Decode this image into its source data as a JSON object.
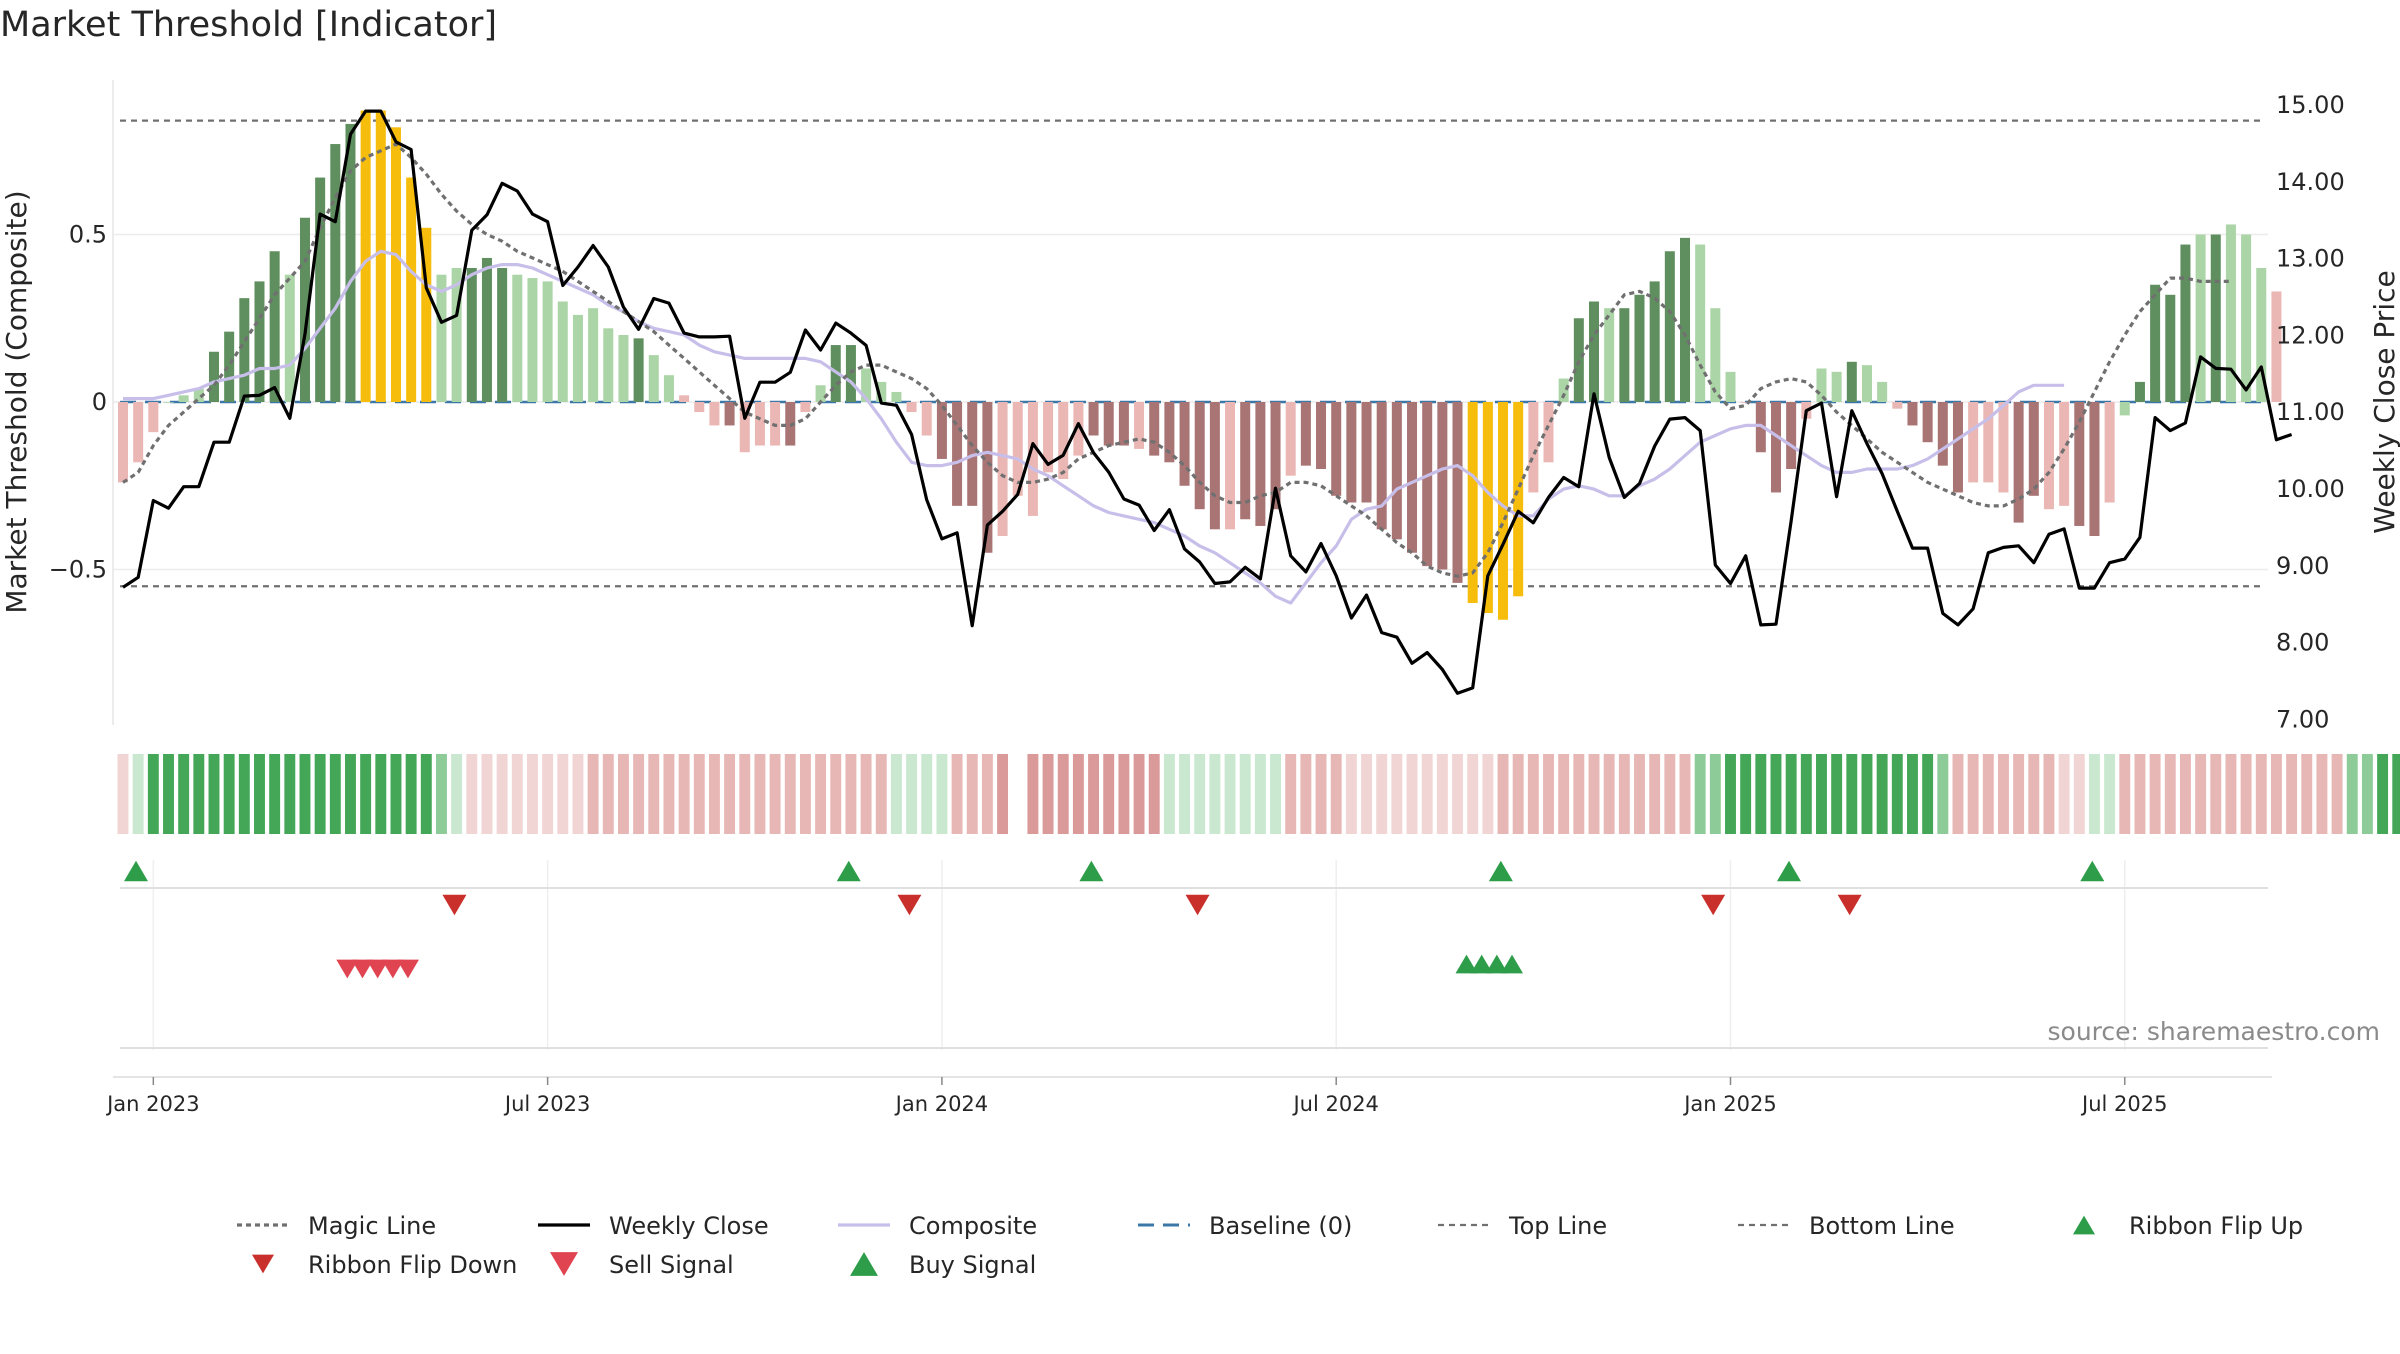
{
  "title": "Market Threshold [Indicator]",
  "source_note": "source: sharemaestro.com",
  "colors": {
    "strong_green": "#5f8f5f",
    "light_green": "#abd5a6",
    "strong_red": "#a87474",
    "light_red": "#eab7b4",
    "extreme": "#f6bd0c",
    "weekly_close": "#000000",
    "magic_line": "#707070",
    "composite": "#c7bfe9",
    "baseline": "#3b78a8",
    "ribbon_green_strong": "#43a757",
    "ribbon_green_mid": "#8dcb99",
    "ribbon_green_light": "#c9e8cf",
    "ribbon_red_strong": "#da9a9a",
    "ribbon_red_mid": "#e7b7b6",
    "ribbon_red_light": "#f1d5d4",
    "flip_up": "#2e9d49",
    "flip_down": "#c9302c",
    "sell": "#e04450",
    "buy": "#2e9d49"
  },
  "chart_data": {
    "type": "bar",
    "title": "Market Threshold [Indicator]",
    "ylabel_left": "Market Threshold (Composite)",
    "ylabel_right": "Weekly Close Price",
    "ylim_left": [
      -0.97,
      0.97
    ],
    "ylim_right": [
      7.0,
      15.2
    ],
    "left_ticks": [
      {
        "v": 0.5,
        "label": "0.5"
      },
      {
        "v": 0,
        "label": "0"
      },
      {
        "v": -0.5,
        "label": "−0.5"
      }
    ],
    "right_ticks": [
      {
        "v": 15,
        "label": "15.00"
      },
      {
        "v": 14,
        "label": "14.00"
      },
      {
        "v": 13,
        "label": "13.00"
      },
      {
        "v": 12,
        "label": "12.00"
      },
      {
        "v": 11,
        "label": "11.00"
      },
      {
        "v": 10,
        "label": "10.00"
      },
      {
        "v": 9,
        "label": "9.00"
      },
      {
        "v": 8,
        "label": "8.00"
      },
      {
        "v": 7,
        "label": "7.00"
      }
    ],
    "x_ticks": [
      {
        "week": 2,
        "label": "Jan 2023"
      },
      {
        "week": 28,
        "label": "Jul 2023"
      },
      {
        "week": 54,
        "label": "Jan 2024"
      },
      {
        "week": 80,
        "label": "Jul 2024"
      },
      {
        "week": 106,
        "label": "Jan 2025"
      },
      {
        "week": 132,
        "label": "Jul 2025"
      }
    ],
    "top_line": 0.84,
    "bottom_line": -0.55,
    "baseline": 0,
    "grid": true,
    "legend_position": "bottom",
    "composite_bars": [
      -0.24,
      -0.18,
      -0.09,
      0.0,
      0.02,
      0.04,
      0.15,
      0.21,
      0.31,
      0.36,
      0.45,
      0.38,
      0.55,
      0.67,
      0.77,
      0.83,
      0.87,
      0.87,
      0.82,
      0.67,
      0.52,
      0.38,
      0.4,
      0.4,
      0.43,
      0.4,
      0.38,
      0.37,
      0.36,
      0.3,
      0.26,
      0.28,
      0.22,
      0.2,
      0.19,
      0.14,
      0.08,
      0.02,
      -0.03,
      -0.07,
      -0.07,
      -0.15,
      -0.13,
      -0.13,
      -0.13,
      -0.03,
      0.05,
      0.17,
      0.17,
      0.1,
      0.06,
      0.03,
      -0.03,
      -0.1,
      -0.17,
      -0.31,
      -0.31,
      -0.45,
      -0.4,
      -0.28,
      -0.34,
      -0.21,
      -0.23,
      -0.16,
      -0.1,
      -0.13,
      -0.13,
      -0.14,
      -0.16,
      -0.18,
      -0.25,
      -0.32,
      -0.38,
      -0.38,
      -0.35,
      -0.37,
      -0.32,
      -0.22,
      -0.19,
      -0.2,
      -0.28,
      -0.3,
      -0.3,
      -0.38,
      -0.41,
      -0.45,
      -0.49,
      -0.5,
      -0.54,
      -0.6,
      -0.63,
      -0.65,
      -0.58,
      -0.27,
      -0.18,
      0.07,
      0.25,
      0.3,
      0.28,
      0.28,
      0.32,
      0.36,
      0.45,
      0.49,
      0.47,
      0.28,
      0.09,
      0.0,
      -0.15,
      -0.27,
      -0.2,
      -0.05,
      0.1,
      0.09,
      0.12,
      0.11,
      0.06,
      -0.02,
      -0.07,
      -0.12,
      -0.19,
      -0.27,
      -0.24,
      -0.24,
      -0.27,
      -0.36,
      -0.28,
      -0.32,
      -0.31,
      -0.37,
      -0.4,
      -0.3,
      -0.04,
      0.06,
      0.35,
      0.32,
      0.47,
      0.5,
      0.5,
      0.53,
      0.5,
      0.4,
      0.33
    ],
    "bar_classes": [
      "lr",
      "lr",
      "lr",
      "lg",
      "lg",
      "lg",
      "sg",
      "sg",
      "sg",
      "sg",
      "sg",
      "lg",
      "sg",
      "sg",
      "sg",
      "sg",
      "ex",
      "ex",
      "ex",
      "ex",
      "ex",
      "lg",
      "lg",
      "sg",
      "sg",
      "sg",
      "lg",
      "lg",
      "lg",
      "lg",
      "lg",
      "lg",
      "lg",
      "lg",
      "sg",
      "lg",
      "lg",
      "lr",
      "lr",
      "lr",
      "sr",
      "lr",
      "lr",
      "lr",
      "sr",
      "lr",
      "lg",
      "sg",
      "sg",
      "lg",
      "lg",
      "lg",
      "lr",
      "lr",
      "sr",
      "sr",
      "sr",
      "sr",
      "lr",
      "lr",
      "lr",
      "lr",
      "lr",
      "lr",
      "sr",
      "sr",
      "sr",
      "lr",
      "sr",
      "sr",
      "sr",
      "sr",
      "sr",
      "lr",
      "sr",
      "sr",
      "sr",
      "lr",
      "sr",
      "sr",
      "sr",
      "sr",
      "sr",
      "sr",
      "sr",
      "sr",
      "sr",
      "sr",
      "sr",
      "ex",
      "ex",
      "ex",
      "ex",
      "lr",
      "lr",
      "lg",
      "sg",
      "sg",
      "lg",
      "sg",
      "sg",
      "sg",
      "sg",
      "sg",
      "lg",
      "lg",
      "lg",
      "lr",
      "sr",
      "sr",
      "sr",
      "lr",
      "lg",
      "lg",
      "sg",
      "lg",
      "lg",
      "lr",
      "sr",
      "sr",
      "sr",
      "sr",
      "lr",
      "lr",
      "lr",
      "sr",
      "sr",
      "lr",
      "lr",
      "sr",
      "sr",
      "lr",
      "lg",
      "sg",
      "sg",
      "sg",
      "sg",
      "lg",
      "sg",
      "lg",
      "lg",
      "lg"
    ],
    "weekly_close": [
      8.72,
      8.85,
      9.85,
      9.75,
      10.03,
      10.03,
      10.61,
      10.61,
      11.21,
      11.22,
      11.32,
      10.92,
      12.02,
      13.58,
      13.48,
      14.62,
      14.92,
      14.92,
      14.52,
      14.42,
      12.62,
      12.17,
      12.26,
      13.37,
      13.57,
      13.98,
      13.88,
      13.58,
      13.48,
      12.65,
      12.89,
      13.17,
      12.89,
      12.37,
      12.08,
      12.48,
      12.42,
      12.03,
      11.98,
      11.98,
      11.99,
      10.92,
      11.39,
      11.39,
      11.52,
      12.07,
      11.81,
      12.16,
      12.03,
      11.87,
      11.12,
      11.09,
      10.71,
      9.86,
      9.35,
      9.43,
      8.22,
      9.53,
      9.71,
      9.93,
      10.59,
      10.32,
      10.44,
      10.85,
      10.47,
      10.22,
      9.87,
      9.79,
      9.46,
      9.73,
      9.22,
      9.05,
      8.77,
      8.79,
      8.98,
      8.83,
      10.01,
      9.13,
      8.92,
      9.29,
      8.87,
      8.32,
      8.62,
      8.13,
      8.07,
      7.73,
      7.87,
      7.65,
      7.34,
      7.41,
      8.87,
      9.28,
      9.71,
      9.56,
      9.89,
      10.15,
      10.03,
      11.24,
      10.41,
      9.89,
      10.07,
      10.56,
      10.91,
      10.93,
      10.76,
      9.01,
      8.77,
      9.13,
      8.23,
      8.24,
      9.58,
      11.02,
      11.12,
      9.9,
      11.02,
      10.59,
      10.2,
      9.71,
      9.23,
      9.23,
      8.38,
      8.23,
      8.44,
      9.17,
      9.24,
      9.26,
      9.04,
      9.41,
      9.48,
      8.71,
      8.71,
      9.04,
      9.09,
      9.37,
      10.93,
      10.76,
      10.86,
      11.72,
      11.57,
      11.56,
      11.29,
      11.59,
      10.64,
      10.71
    ],
    "magic_line": [
      -0.24,
      -0.21,
      -0.13,
      -0.07,
      -0.03,
      0.01,
      0.05,
      0.11,
      0.18,
      0.25,
      0.32,
      0.37,
      0.42,
      0.52,
      0.61,
      0.69,
      0.73,
      0.75,
      0.77,
      0.73,
      0.68,
      0.62,
      0.57,
      0.53,
      0.5,
      0.48,
      0.45,
      0.43,
      0.41,
      0.39,
      0.36,
      0.33,
      0.3,
      0.27,
      0.24,
      0.21,
      0.17,
      0.13,
      0.09,
      0.05,
      0.01,
      -0.03,
      -0.05,
      -0.07,
      -0.07,
      -0.05,
      0.0,
      0.05,
      0.09,
      0.11,
      0.11,
      0.09,
      0.07,
      0.04,
      -0.01,
      -0.07,
      -0.13,
      -0.18,
      -0.22,
      -0.24,
      -0.24,
      -0.23,
      -0.21,
      -0.17,
      -0.15,
      -0.13,
      -0.12,
      -0.11,
      -0.12,
      -0.15,
      -0.19,
      -0.24,
      -0.28,
      -0.3,
      -0.3,
      -0.28,
      -0.27,
      -0.24,
      -0.24,
      -0.25,
      -0.28,
      -0.31,
      -0.34,
      -0.38,
      -0.42,
      -0.45,
      -0.49,
      -0.51,
      -0.52,
      -0.51,
      -0.45,
      -0.36,
      -0.26,
      -0.16,
      -0.07,
      0.02,
      0.12,
      0.2,
      0.26,
      0.32,
      0.33,
      0.31,
      0.27,
      0.2,
      0.11,
      0.03,
      -0.02,
      -0.01,
      0.04,
      0.06,
      0.07,
      0.06,
      0.02,
      -0.03,
      -0.07,
      -0.11,
      -0.15,
      -0.18,
      -0.21,
      -0.24,
      -0.26,
      -0.28,
      -0.3,
      -0.31,
      -0.31,
      -0.29,
      -0.26,
      -0.21,
      -0.14,
      -0.06,
      0.03,
      0.12,
      0.2,
      0.27,
      0.32,
      0.37,
      0.37,
      0.36,
      0.36,
      0.36
    ],
    "composite_line": [
      0.01,
      0.01,
      0.01,
      0.02,
      0.03,
      0.04,
      0.06,
      0.07,
      0.08,
      0.1,
      0.1,
      0.11,
      0.16,
      0.22,
      0.28,
      0.36,
      0.42,
      0.45,
      0.44,
      0.39,
      0.35,
      0.33,
      0.35,
      0.38,
      0.4,
      0.41,
      0.41,
      0.4,
      0.38,
      0.36,
      0.34,
      0.32,
      0.29,
      0.27,
      0.24,
      0.22,
      0.21,
      0.2,
      0.17,
      0.15,
      0.14,
      0.13,
      0.13,
      0.13,
      0.13,
      0.13,
      0.12,
      0.09,
      0.06,
      0.01,
      -0.05,
      -0.12,
      -0.18,
      -0.19,
      -0.19,
      -0.18,
      -0.16,
      -0.15,
      -0.16,
      -0.17,
      -0.2,
      -0.22,
      -0.25,
      -0.28,
      -0.31,
      -0.33,
      -0.34,
      -0.35,
      -0.36,
      -0.38,
      -0.4,
      -0.43,
      -0.45,
      -0.48,
      -0.51,
      -0.54,
      -0.58,
      -0.6,
      -0.54,
      -0.48,
      -0.43,
      -0.35,
      -0.32,
      -0.31,
      -0.26,
      -0.24,
      -0.22,
      -0.2,
      -0.19,
      -0.22,
      -0.27,
      -0.31,
      -0.34,
      -0.34,
      -0.29,
      -0.26,
      -0.25,
      -0.26,
      -0.28,
      -0.28,
      -0.25,
      -0.23,
      -0.2,
      -0.16,
      -0.12,
      -0.1,
      -0.08,
      -0.07,
      -0.07,
      -0.1,
      -0.13,
      -0.16,
      -0.19,
      -0.21,
      -0.21,
      -0.2,
      -0.2,
      -0.2,
      -0.19,
      -0.17,
      -0.14,
      -0.11,
      -0.08,
      -0.05,
      -0.01,
      0.03,
      0.05,
      0.05,
      0.05
    ],
    "ribbon": [
      "rl",
      "gl",
      "gs",
      "gs",
      "gs",
      "gs",
      "gs",
      "gs",
      "gs",
      "gs",
      "gs",
      "gs",
      "gs",
      "gs",
      "gs",
      "gs",
      "gs",
      "gs",
      "gs",
      "gs",
      "gs",
      "gm",
      "gl",
      "rl",
      "rl",
      "rl",
      "rl",
      "rl",
      "rl",
      "rl",
      "rl",
      "rm",
      "rm",
      "rm",
      "rm",
      "rm",
      "rm",
      "rm",
      "rm",
      "rm",
      "rm",
      "rm",
      "rm",
      "rm",
      "rm",
      "rm",
      "rm",
      "rm",
      "rm",
      "rm",
      "rm",
      "gl",
      "gl",
      "gl",
      "gl",
      "rm",
      "rm",
      "rm",
      "rs",
      "rs",
      "rs",
      "rs",
      "rs",
      "rs",
      "rs",
      "rs",
      "rs",
      "rs",
      "rs",
      "gl",
      "gl",
      "gl",
      "gl",
      "gl",
      "gl",
      "gl",
      "gl",
      "rm",
      "rm",
      "rm",
      "rm",
      "rl",
      "rl",
      "rl",
      "rl",
      "rl",
      "rl",
      "rl",
      "rl",
      "rl",
      "rl",
      "rm",
      "rm",
      "rm",
      "rm",
      "rm",
      "rm",
      "rm",
      "rm",
      "rm",
      "rm",
      "rm",
      "rm",
      "rm",
      "gm",
      "gm",
      "gs",
      "gs",
      "gs",
      "gs",
      "gs",
      "gs",
      "gs",
      "gs",
      "gs",
      "gs",
      "gs",
      "gs",
      "gs",
      "gs",
      "gm",
      "rm",
      "rm",
      "rm",
      "rm",
      "rm",
      "rm",
      "rm",
      "rl",
      "rl",
      "gl",
      "gl",
      "rm",
      "rm",
      "rm",
      "rm",
      "rm",
      "rm",
      "rm",
      "rm",
      "rm",
      "rm",
      "rm",
      "rm",
      "rm",
      "rm",
      "rm",
      "gm",
      "gm",
      "gs",
      "gs",
      "gs",
      "gs",
      "gs",
      "gs",
      "gs",
      "gs",
      "gm",
      "gm"
    ],
    "ribbon_gaps": [
      59
    ],
    "ribbon_flip_up_weeks": [
      0,
      47,
      63,
      90,
      109,
      129
    ],
    "ribbon_flip_down_weeks": [
      21,
      51,
      70,
      104,
      113
    ],
    "sell_signal_weeks": [
      14,
      15,
      16,
      17,
      18
    ],
    "buy_signal_weeks": [
      88,
      89,
      90,
      91
    ],
    "legend": [
      {
        "key": "magic_line",
        "label": "Magic Line"
      },
      {
        "key": "weekly_close",
        "label": "Weekly Close"
      },
      {
        "key": "composite",
        "label": "Composite"
      },
      {
        "key": "baseline",
        "label": "Baseline (0)"
      },
      {
        "key": "top_line",
        "label": "Top Line"
      },
      {
        "key": "bottom_line",
        "label": "Bottom Line"
      },
      {
        "key": "flip_up",
        "label": "Ribbon Flip Up"
      },
      {
        "key": "flip_down",
        "label": "Ribbon Flip Down"
      },
      {
        "key": "sell",
        "label": "Sell Signal"
      },
      {
        "key": "buy",
        "label": "Buy Signal"
      }
    ]
  }
}
